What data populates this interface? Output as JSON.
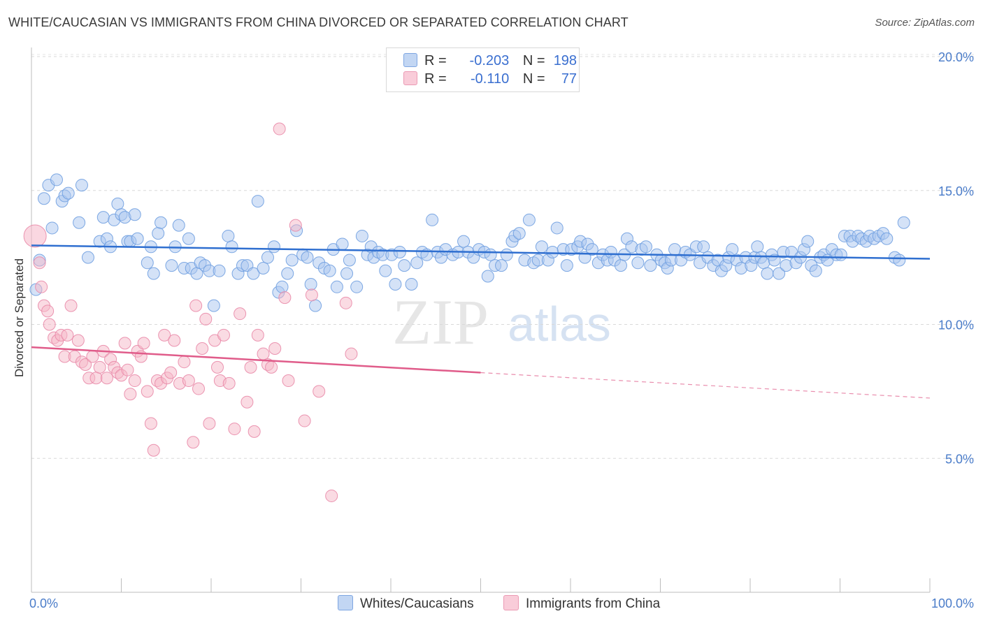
{
  "header": {
    "title": "WHITE/CAUCASIAN VS IMMIGRANTS FROM CHINA DIVORCED OR SEPARATED CORRELATION CHART",
    "source": "Source: ZipAtlas.com"
  },
  "watermark": {
    "zip": "ZIP",
    "atlas": "atlas"
  },
  "legend": {
    "rows": [
      {
        "r_label": "R =",
        "r_value": "-0.203",
        "n_label": "N =",
        "n_value": "198",
        "color": "#a9c6f0"
      },
      {
        "r_label": "R =",
        "r_value": "-0.110",
        "n_label": "N =",
        "n_value": "77",
        "color": "#f5b7c8"
      }
    ]
  },
  "bottom_legend": {
    "items": [
      {
        "label": "Whites/Caucasians",
        "color": "#a9c6f0"
      },
      {
        "label": "Immigrants from China",
        "color": "#f5b7c8"
      }
    ]
  },
  "chart_data": {
    "type": "scatter",
    "title": "WHITE/CAUCASIAN VS IMMIGRANTS FROM CHINA DIVORCED OR SEPARATED CORRELATION CHART",
    "ylabel": "Divorced or Separated",
    "xlabel": "",
    "xlim": [
      0,
      100
    ],
    "ylim": [
      0,
      20.5
    ],
    "x_tick_labels": [
      "0.0%",
      "100.0%"
    ],
    "y_ticks": [
      5,
      10,
      15,
      20
    ],
    "y_tick_labels": [
      "5.0%",
      "10.0%",
      "15.0%",
      "20.0%"
    ],
    "grid": "horizontal dashed",
    "legend_position": "top-center",
    "series": [
      {
        "name": "Whites/Caucasians",
        "color": "#a9c6f0",
        "stroke": "#6f9ee0",
        "trend": {
          "x": [
            0,
            100
          ],
          "y": [
            12.95,
            12.45
          ],
          "color": "#2f6fd0"
        },
        "points": [
          [
            0.5,
            11.3
          ],
          [
            0.9,
            12.4
          ],
          [
            1.4,
            14.7
          ],
          [
            1.9,
            15.2
          ],
          [
            2.3,
            13.6
          ],
          [
            2.8,
            15.4
          ],
          [
            3.4,
            14.6
          ],
          [
            3.7,
            14.8
          ],
          [
            4.1,
            14.9
          ],
          [
            5.3,
            13.8
          ],
          [
            5.6,
            15.2
          ],
          [
            6.3,
            12.5
          ],
          [
            7.6,
            13.1
          ],
          [
            8.0,
            14.0
          ],
          [
            8.4,
            13.2
          ],
          [
            8.8,
            12.9
          ],
          [
            9.2,
            13.9
          ],
          [
            9.6,
            14.5
          ],
          [
            10.0,
            14.1
          ],
          [
            10.4,
            14.0
          ],
          [
            10.7,
            13.1
          ],
          [
            11.0,
            13.1
          ],
          [
            11.5,
            14.1
          ],
          [
            11.8,
            13.2
          ],
          [
            12.9,
            12.3
          ],
          [
            13.3,
            12.9
          ],
          [
            13.6,
            11.9
          ],
          [
            14.1,
            13.4
          ],
          [
            14.4,
            13.8
          ],
          [
            15.6,
            12.2
          ],
          [
            16.0,
            12.9
          ],
          [
            16.4,
            13.7
          ],
          [
            17.0,
            12.1
          ],
          [
            17.5,
            13.2
          ],
          [
            17.8,
            12.1
          ],
          [
            18.4,
            11.9
          ],
          [
            18.8,
            12.3
          ],
          [
            19.3,
            12.2
          ],
          [
            19.8,
            12.0
          ],
          [
            20.3,
            10.7
          ],
          [
            20.9,
            12.0
          ],
          [
            21.9,
            13.3
          ],
          [
            22.3,
            12.9
          ],
          [
            23.0,
            11.9
          ],
          [
            23.5,
            12.2
          ],
          [
            24.0,
            12.2
          ],
          [
            24.7,
            11.9
          ],
          [
            25.2,
            14.6
          ],
          [
            25.8,
            12.1
          ],
          [
            26.3,
            12.5
          ],
          [
            27.0,
            12.9
          ],
          [
            27.5,
            11.2
          ],
          [
            27.9,
            11.4
          ],
          [
            28.5,
            11.9
          ],
          [
            29.0,
            12.4
          ],
          [
            29.5,
            13.5
          ],
          [
            30.2,
            12.6
          ],
          [
            30.7,
            12.5
          ],
          [
            31.1,
            11.5
          ],
          [
            31.6,
            10.7
          ],
          [
            32.0,
            12.3
          ],
          [
            32.6,
            12.1
          ],
          [
            33.2,
            12.0
          ],
          [
            33.6,
            12.8
          ],
          [
            34.0,
            11.4
          ],
          [
            34.6,
            13.0
          ],
          [
            35.1,
            11.9
          ],
          [
            35.4,
            12.4
          ],
          [
            36.2,
            11.4
          ],
          [
            36.8,
            13.3
          ],
          [
            37.4,
            12.6
          ],
          [
            37.8,
            12.9
          ],
          [
            38.1,
            12.5
          ],
          [
            38.6,
            12.7
          ],
          [
            39.1,
            12.6
          ],
          [
            39.4,
            12.0
          ],
          [
            40.1,
            12.6
          ],
          [
            40.5,
            11.5
          ],
          [
            41.0,
            12.7
          ],
          [
            41.5,
            12.2
          ],
          [
            42.3,
            11.5
          ],
          [
            42.9,
            12.3
          ],
          [
            43.5,
            12.7
          ],
          [
            44.0,
            12.6
          ],
          [
            44.6,
            13.9
          ],
          [
            45.2,
            12.7
          ],
          [
            45.6,
            12.5
          ],
          [
            46.1,
            12.8
          ],
          [
            46.9,
            12.6
          ],
          [
            47.5,
            12.7
          ],
          [
            48.1,
            13.1
          ],
          [
            48.6,
            12.7
          ],
          [
            49.2,
            12.5
          ],
          [
            49.8,
            12.8
          ],
          [
            50.4,
            12.7
          ],
          [
            50.8,
            11.8
          ],
          [
            51.1,
            12.6
          ],
          [
            51.6,
            12.2
          ],
          [
            52.3,
            12.2
          ],
          [
            52.9,
            12.6
          ],
          [
            53.5,
            13.1
          ],
          [
            53.8,
            13.3
          ],
          [
            54.3,
            13.4
          ],
          [
            54.9,
            12.4
          ],
          [
            55.4,
            13.9
          ],
          [
            55.9,
            12.3
          ],
          [
            56.4,
            12.4
          ],
          [
            56.8,
            12.9
          ],
          [
            57.5,
            12.4
          ],
          [
            58.0,
            12.7
          ],
          [
            58.5,
            13.6
          ],
          [
            59.2,
            12.8
          ],
          [
            59.6,
            12.2
          ],
          [
            60.1,
            12.8
          ],
          [
            60.8,
            12.9
          ],
          [
            61.1,
            13.1
          ],
          [
            61.6,
            12.5
          ],
          [
            61.9,
            13.0
          ],
          [
            62.4,
            12.8
          ],
          [
            63.1,
            12.3
          ],
          [
            63.6,
            12.6
          ],
          [
            64.1,
            12.4
          ],
          [
            64.5,
            12.7
          ],
          [
            64.9,
            12.4
          ],
          [
            65.6,
            12.2
          ],
          [
            66.0,
            12.6
          ],
          [
            66.3,
            13.2
          ],
          [
            66.8,
            12.9
          ],
          [
            67.5,
            12.3
          ],
          [
            67.9,
            12.8
          ],
          [
            68.4,
            12.9
          ],
          [
            68.9,
            12.2
          ],
          [
            69.6,
            12.6
          ],
          [
            70.1,
            12.4
          ],
          [
            70.5,
            12.3
          ],
          [
            70.8,
            12.1
          ],
          [
            71.2,
            12.4
          ],
          [
            71.6,
            12.8
          ],
          [
            72.3,
            12.4
          ],
          [
            72.8,
            12.7
          ],
          [
            73.3,
            12.6
          ],
          [
            74.0,
            12.9
          ],
          [
            74.4,
            12.3
          ],
          [
            74.8,
            12.9
          ],
          [
            75.3,
            12.5
          ],
          [
            75.9,
            12.2
          ],
          [
            76.4,
            12.4
          ],
          [
            76.8,
            12.0
          ],
          [
            77.3,
            12.2
          ],
          [
            77.6,
            12.5
          ],
          [
            78.0,
            12.8
          ],
          [
            78.5,
            12.4
          ],
          [
            79.0,
            12.1
          ],
          [
            79.5,
            12.5
          ],
          [
            80.1,
            12.2
          ],
          [
            80.5,
            12.5
          ],
          [
            80.8,
            12.9
          ],
          [
            81.2,
            12.5
          ],
          [
            81.5,
            12.3
          ],
          [
            81.9,
            11.9
          ],
          [
            82.4,
            12.6
          ],
          [
            82.7,
            12.4
          ],
          [
            83.2,
            11.9
          ],
          [
            83.7,
            12.7
          ],
          [
            84.0,
            12.2
          ],
          [
            84.6,
            12.7
          ],
          [
            85.1,
            12.3
          ],
          [
            85.6,
            12.5
          ],
          [
            86.0,
            12.8
          ],
          [
            86.4,
            13.1
          ],
          [
            86.8,
            12.2
          ],
          [
            87.3,
            12.0
          ],
          [
            87.8,
            12.5
          ],
          [
            88.2,
            12.6
          ],
          [
            88.6,
            12.4
          ],
          [
            89.1,
            12.8
          ],
          [
            89.6,
            12.6
          ],
          [
            90.1,
            12.6
          ],
          [
            90.5,
            13.3
          ],
          [
            91.1,
            13.3
          ],
          [
            91.4,
            13.1
          ],
          [
            92.0,
            13.3
          ],
          [
            92.4,
            13.2
          ],
          [
            92.9,
            13.1
          ],
          [
            93.3,
            13.3
          ],
          [
            93.8,
            13.2
          ],
          [
            94.3,
            13.3
          ],
          [
            94.8,
            13.4
          ],
          [
            95.2,
            13.2
          ],
          [
            96.1,
            12.5
          ],
          [
            96.6,
            12.4
          ],
          [
            97.1,
            13.8
          ]
        ]
      },
      {
        "name": "Immigrants from China",
        "color": "#f5b7c8",
        "stroke": "#e98aa8",
        "trend": {
          "x": [
            0,
            50
          ],
          "y": [
            9.15,
            8.2
          ],
          "x_dashed": [
            50,
            100
          ],
          "y_dashed": [
            8.2,
            7.25
          ],
          "color": "#e05c8a"
        },
        "points": [
          [
            0.4,
            13.3
          ],
          [
            0.9,
            12.3
          ],
          [
            1.1,
            11.4
          ],
          [
            1.4,
            10.7
          ],
          [
            1.8,
            10.5
          ],
          [
            2.0,
            10.0
          ],
          [
            2.5,
            9.5
          ],
          [
            2.9,
            9.4
          ],
          [
            3.3,
            9.6
          ],
          [
            3.7,
            8.8
          ],
          [
            4.0,
            9.6
          ],
          [
            4.4,
            10.7
          ],
          [
            4.8,
            8.8
          ],
          [
            5.2,
            9.4
          ],
          [
            5.6,
            8.6
          ],
          [
            6.0,
            8.5
          ],
          [
            6.4,
            8.0
          ],
          [
            6.8,
            8.8
          ],
          [
            7.2,
            8.0
          ],
          [
            7.6,
            8.4
          ],
          [
            8.0,
            9.0
          ],
          [
            8.4,
            8.0
          ],
          [
            8.8,
            8.7
          ],
          [
            9.2,
            8.4
          ],
          [
            9.6,
            8.2
          ],
          [
            10.0,
            8.1
          ],
          [
            10.4,
            9.3
          ],
          [
            10.7,
            8.3
          ],
          [
            11.0,
            7.4
          ],
          [
            11.5,
            7.9
          ],
          [
            11.8,
            9.0
          ],
          [
            12.2,
            8.8
          ],
          [
            12.5,
            9.3
          ],
          [
            12.9,
            7.5
          ],
          [
            13.3,
            6.3
          ],
          [
            13.6,
            5.3
          ],
          [
            14.0,
            7.9
          ],
          [
            14.4,
            7.8
          ],
          [
            14.8,
            9.6
          ],
          [
            15.1,
            8.0
          ],
          [
            15.5,
            8.2
          ],
          [
            15.9,
            9.4
          ],
          [
            16.5,
            7.8
          ],
          [
            17.0,
            8.6
          ],
          [
            17.5,
            7.9
          ],
          [
            18.0,
            5.6
          ],
          [
            18.3,
            10.7
          ],
          [
            18.6,
            7.6
          ],
          [
            19.0,
            9.1
          ],
          [
            19.4,
            10.2
          ],
          [
            19.8,
            6.3
          ],
          [
            20.4,
            9.4
          ],
          [
            20.7,
            8.4
          ],
          [
            21.0,
            7.9
          ],
          [
            21.4,
            9.6
          ],
          [
            22.0,
            7.8
          ],
          [
            22.6,
            6.1
          ],
          [
            23.2,
            10.4
          ],
          [
            24.0,
            7.1
          ],
          [
            24.4,
            8.4
          ],
          [
            24.8,
            6.0
          ],
          [
            25.2,
            9.6
          ],
          [
            25.8,
            8.9
          ],
          [
            26.3,
            8.5
          ],
          [
            26.7,
            8.4
          ],
          [
            27.1,
            9.1
          ],
          [
            27.6,
            17.3
          ],
          [
            28.2,
            11.0
          ],
          [
            28.6,
            7.9
          ],
          [
            29.4,
            13.7
          ],
          [
            30.4,
            6.4
          ],
          [
            31.2,
            11.1
          ],
          [
            32.0,
            7.5
          ],
          [
            33.4,
            3.6
          ],
          [
            35.0,
            10.8
          ],
          [
            35.6,
            8.9
          ]
        ]
      }
    ]
  }
}
